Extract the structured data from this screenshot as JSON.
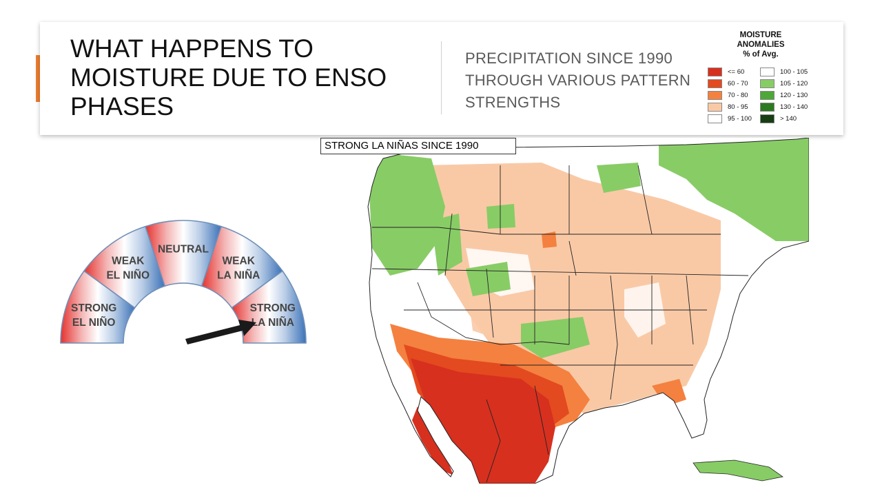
{
  "slide": {
    "title": "WHAT HAPPENS TO MOISTURE DUE TO ENSO PHASES",
    "subtitle": "PRECIPITATION SINCE 1990 THROUGH VARIOUS PATTERN STRENGTHS",
    "accent_color": "#ed7d31"
  },
  "legend": {
    "title_line1": "MOISTURE",
    "title_line2": "ANOMALIES",
    "title_line3": "% of Avg.",
    "items": [
      {
        "label": "<= 60",
        "color": "#d7301f"
      },
      {
        "label": "60 - 70",
        "color": "#e34a1f"
      },
      {
        "label": "70 - 80",
        "color": "#f4813f"
      },
      {
        "label": "80 - 95",
        "color": "#f9c9a6"
      },
      {
        "label": "95 - 100",
        "color": "#ffffff"
      },
      {
        "label": "100 - 105",
        "color": "#ffffff"
      },
      {
        "label": "105 - 120",
        "color": "#88cc66"
      },
      {
        "label": "120 - 130",
        "color": "#4da838"
      },
      {
        "label": "130 - 140",
        "color": "#2b7a1f"
      },
      {
        "label": "> 140",
        "color": "#173d12"
      }
    ]
  },
  "map": {
    "label": "STRONG LA NIÑAS SINCE 1990"
  },
  "gauge": {
    "segments": [
      {
        "line1": "STRONG",
        "line2": "EL NIÑO"
      },
      {
        "line1": "WEAK",
        "line2": "EL NIÑO"
      },
      {
        "line1": "NEUTRAL",
        "line2": ""
      },
      {
        "line1": "WEAK",
        "line2": "LA NIÑA"
      },
      {
        "line1": "STRONG",
        "line2": "LA NIÑA"
      }
    ],
    "pointer": "STRONG LA NIÑA"
  }
}
